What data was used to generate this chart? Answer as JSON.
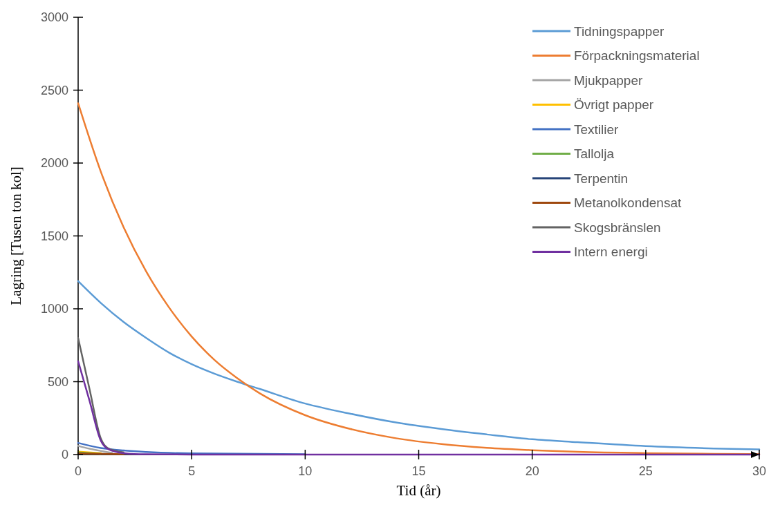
{
  "chart_data": {
    "type": "line",
    "xlabel": "Tid (år)",
    "ylabel": "Lagring [Tusen ton kol]",
    "xlim": [
      0,
      30
    ],
    "xticks": [
      0,
      5,
      10,
      15,
      20,
      25,
      30
    ],
    "ylim": [
      0,
      3000
    ],
    "yticks": [
      0,
      500,
      1000,
      1500,
      2000,
      2500,
      3000
    ],
    "grid": false,
    "legend": "top right",
    "marker": "none",
    "line_style": "solid",
    "series": [
      {
        "name": "Tidningspapper",
        "color": "#5b9bd5",
        "x": [
          0,
          1,
          2,
          3,
          4,
          5,
          6,
          7,
          8,
          10,
          12,
          14,
          16,
          18,
          20,
          22,
          25,
          28,
          30
        ],
        "values": [
          1190,
          1040,
          910,
          800,
          700,
          620,
          555,
          500,
          450,
          350,
          280,
          220,
          175,
          138,
          105,
          85,
          58,
          42,
          35
        ]
      },
      {
        "name": "Förpackningsmaterial",
        "color": "#ed7d31",
        "x": [
          0,
          1,
          2,
          3,
          4,
          5,
          6,
          7,
          8,
          10,
          12,
          14,
          16,
          18,
          20,
          22,
          25,
          28,
          30
        ],
        "values": [
          2410,
          1940,
          1560,
          1255,
          1010,
          810,
          650,
          525,
          420,
          270,
          175,
          112,
          72,
          46,
          30,
          19,
          10,
          5,
          3
        ]
      },
      {
        "name": "Mjukpapper",
        "color": "#a5a5a5",
        "x": [
          0,
          0.5,
          1,
          1.5
        ],
        "values": [
          60,
          40,
          25,
          12
        ]
      },
      {
        "name": "Övrigt papper",
        "color": "#ffc000",
        "x": [
          0,
          1
        ],
        "values": [
          20,
          10
        ]
      },
      {
        "name": "Textilier",
        "color": "#4472c4",
        "x": [
          0,
          1,
          2,
          3,
          5,
          10
        ],
        "values": [
          80,
          45,
          28,
          18,
          8,
          2
        ]
      },
      {
        "name": "Tallolja",
        "color": "#70ad47",
        "x": [
          0,
          1
        ],
        "values": [
          15,
          5
        ]
      },
      {
        "name": "Terpentin",
        "color": "#264478"
      },
      {
        "name": "Metanolkondensat",
        "color": "#9e480e",
        "x": [
          0,
          2
        ],
        "values": [
          8,
          2
        ]
      },
      {
        "name": "Skogsbränslen",
        "color": "#636363",
        "x": [
          0,
          0.5,
          1,
          1.3,
          2
        ],
        "values": [
          800,
          450,
          110,
          45,
          15
        ]
      },
      {
        "name": "Intern energi",
        "color": "#7030a0",
        "x": [
          0,
          0.5,
          1,
          1.3,
          2,
          3,
          5,
          30
        ],
        "values": [
          640,
          370,
          95,
          40,
          10,
          2,
          0,
          0
        ]
      }
    ]
  }
}
